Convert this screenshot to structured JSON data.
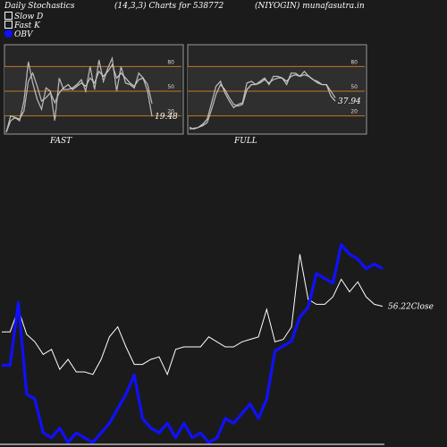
{
  "header": {
    "left": "Daily Stochastics",
    "middle": "(14,3,3) Charts for 538772",
    "right": "(NIYOGIN) munafasutra.in"
  },
  "legend": [
    {
      "label": "Slow  D",
      "color": "#ffffff"
    },
    {
      "label": "Fast K",
      "color": "#ffffff"
    },
    {
      "label": "OBV",
      "color": "#1010ff"
    }
  ],
  "colors": {
    "background": "#1b1b1b",
    "panel": "#262626",
    "band": "#c07820",
    "price_line": "#ffffff",
    "obv_line": "#1010ff"
  },
  "chart_data": [
    {
      "type": "line",
      "panel": "FAST",
      "title": "FAST",
      "ylim": [
        0,
        100
      ],
      "bands": [
        20,
        50,
        80
      ],
      "tick_labels": [
        "80",
        "50",
        "20"
      ],
      "last_value_label": "19.48",
      "series": [
        {
          "name": "Fast K",
          "values": [
            0,
            20,
            18,
            14,
            38,
            86,
            60,
            40,
            28,
            54,
            50,
            14,
            66,
            52,
            52,
            54,
            58,
            64,
            50,
            80,
            52,
            88,
            62,
            78,
            90,
            50,
            80,
            60,
            58,
            54,
            72,
            66,
            50,
            19.48
          ]
        },
        {
          "name": "Slow D",
          "values": [
            0,
            14,
            18,
            16,
            26,
            62,
            72,
            56,
            38,
            42,
            48,
            36,
            48,
            54,
            58,
            52,
            56,
            60,
            56,
            66,
            60,
            74,
            68,
            74,
            82,
            66,
            72,
            66,
            60,
            56,
            64,
            66,
            58,
            35
          ]
        }
      ]
    },
    {
      "type": "line",
      "panel": "FULL",
      "title": "FULL",
      "ylim": [
        0,
        100
      ],
      "bands": [
        20,
        50,
        80
      ],
      "tick_labels": [
        "80",
        "50",
        "20"
      ],
      "last_value_label": "37.94",
      "series": [
        {
          "name": "Full K",
          "values": [
            6,
            4,
            6,
            10,
            16,
            36,
            56,
            62,
            48,
            38,
            30,
            34,
            36,
            60,
            62,
            58,
            62,
            66,
            58,
            68,
            68,
            66,
            58,
            72,
            72,
            68,
            74,
            68,
            64,
            60,
            58,
            58,
            44,
            37.94
          ]
        },
        {
          "name": "Full D",
          "values": [
            4,
            5,
            6,
            8,
            12,
            28,
            46,
            58,
            52,
            42,
            34,
            32,
            34,
            52,
            58,
            58,
            60,
            64,
            60,
            64,
            66,
            66,
            62,
            68,
            70,
            68,
            70,
            68,
            64,
            62,
            58,
            58,
            50,
            42
          ]
        }
      ]
    },
    {
      "type": "line",
      "panel": "price_obv",
      "last_value_label": "56.22Close",
      "series": [
        {
          "name": "Close",
          "values": [
            46,
            46,
            55,
            45,
            42,
            37,
            39,
            31,
            35,
            30,
            30,
            29,
            35,
            44,
            48,
            40,
            33,
            33,
            35,
            36,
            29,
            39,
            40,
            40,
            40,
            44,
            42,
            40,
            40,
            42,
            43,
            44,
            55,
            42,
            43,
            48,
            77,
            59,
            57,
            57,
            60,
            67,
            62,
            66,
            60,
            57,
            56.22
          ]
        },
        {
          "name": "OBV",
          "values": [
            22,
            22,
            48,
            10,
            8,
            -6,
            -8,
            -4,
            -10,
            -6,
            -8,
            -10,
            -6,
            -2,
            4,
            10,
            18,
            0,
            -4,
            -6,
            -2,
            -8,
            -2,
            -8,
            -6,
            -10,
            -8,
            0,
            -2,
            2,
            6,
            0,
            8,
            28,
            30,
            32,
            42,
            46,
            60,
            58,
            56,
            72,
            68,
            66,
            62,
            64,
            62
          ]
        }
      ]
    }
  ]
}
